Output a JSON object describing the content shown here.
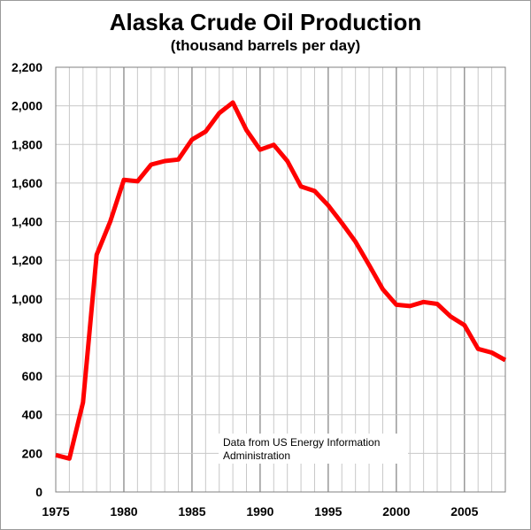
{
  "chart_data": {
    "type": "line",
    "title": "Alaska Crude Oil Production",
    "subtitle": "(thousand barrels per day)",
    "xlabel": "",
    "ylabel": "",
    "xlim": [
      1975,
      2008
    ],
    "ylim": [
      0,
      2200
    ],
    "x_ticks": [
      "1975",
      "1980",
      "1985",
      "1990",
      "1995",
      "2000",
      "2005"
    ],
    "y_ticks": [
      "0",
      "200",
      "400",
      "600",
      "800",
      "1,000",
      "1,200",
      "1,400",
      "1,600",
      "1,800",
      "2,000",
      "2,200"
    ],
    "grid": true,
    "line_color": "#ff0000",
    "series": [
      {
        "x": [
          1975,
          1976,
          1977,
          1978,
          1979,
          1980,
          1981,
          1982,
          1983,
          1984,
          1985,
          1986,
          1987,
          1988,
          1989,
          1990,
          1991,
          1992,
          1993,
          1994,
          1995,
          1996,
          1997,
          1998,
          1999,
          2000,
          2001,
          2002,
          2003,
          2004,
          2005,
          2006,
          2007,
          2008
        ],
        "values": [
          191,
          173,
          464,
          1229,
          1401,
          1617,
          1609,
          1696,
          1714,
          1722,
          1825,
          1867,
          1962,
          2017,
          1874,
          1773,
          1798,
          1714,
          1582,
          1559,
          1484,
          1393,
          1296,
          1175,
          1050,
          970,
          963,
          984,
          974,
          908,
          864,
          741,
          722,
          683
        ]
      }
    ],
    "annotation": "Data from US Energy Information Administration",
    "annotation_lines": [
      "Data from US Energy Information",
      "Administration"
    ]
  }
}
